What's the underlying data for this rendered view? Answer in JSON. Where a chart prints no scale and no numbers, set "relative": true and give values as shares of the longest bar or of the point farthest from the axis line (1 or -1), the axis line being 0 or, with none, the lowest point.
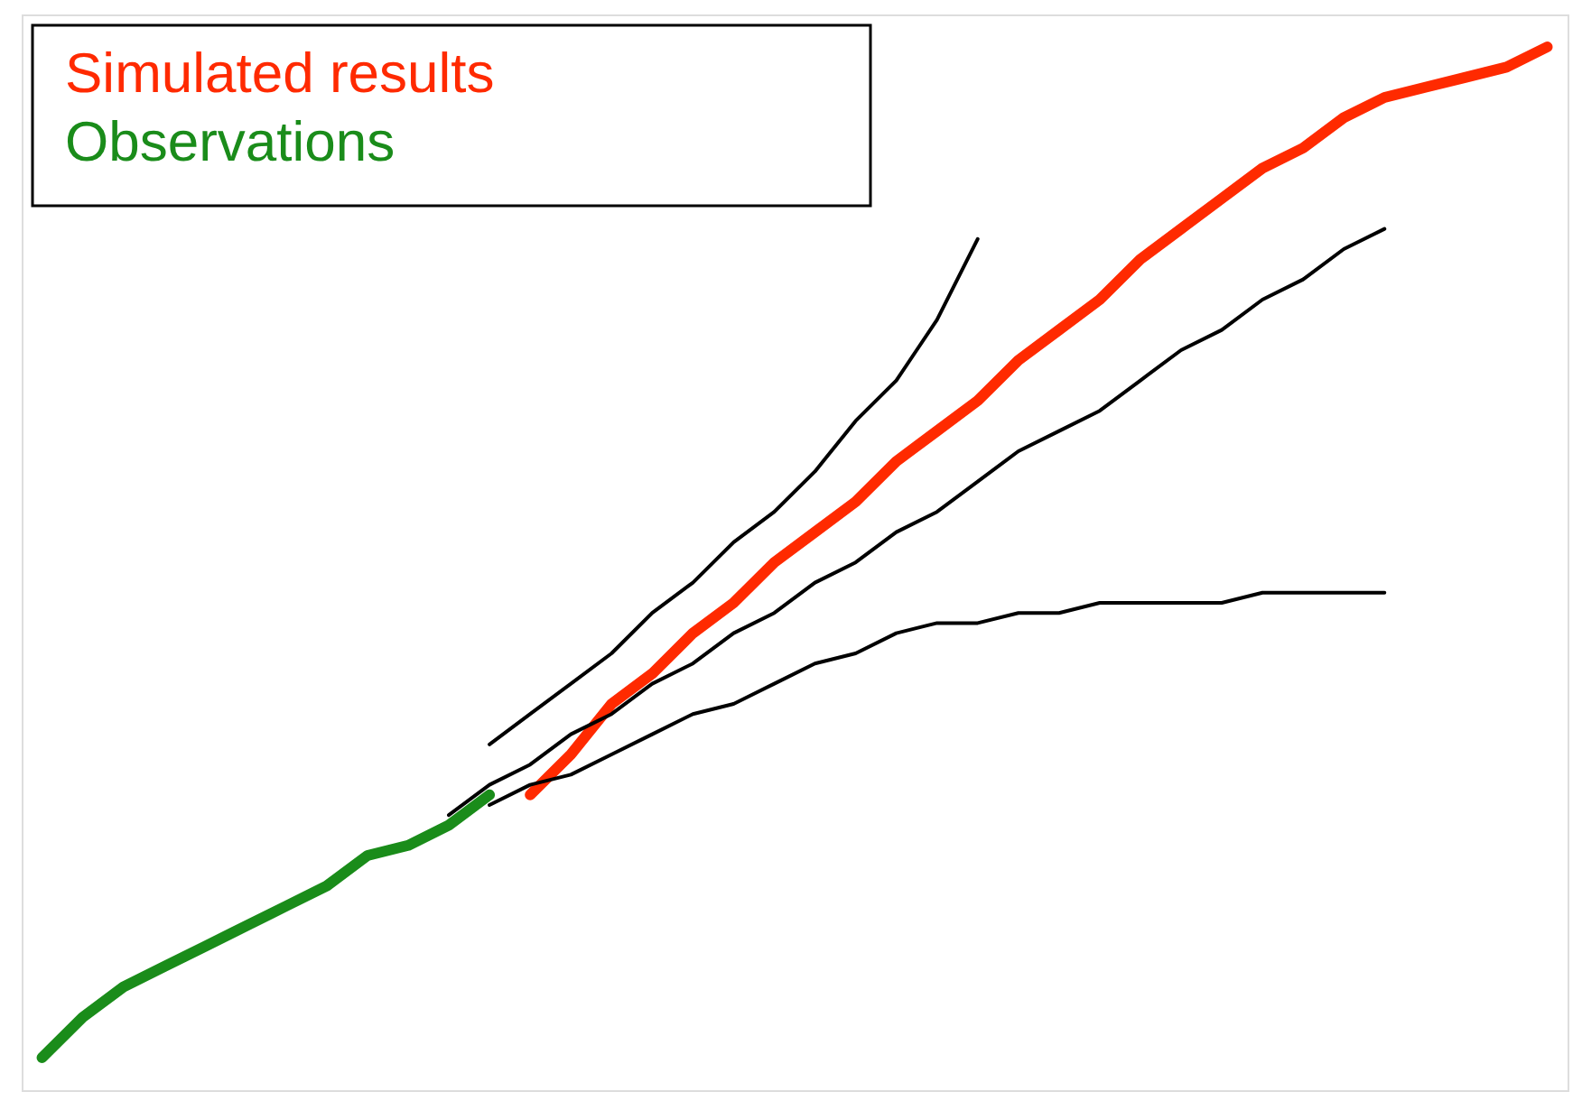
{
  "chart_data": {
    "type": "line",
    "relative": true,
    "categories": [
      null,
      null,
      null,
      null,
      null,
      null,
      null,
      null,
      null,
      null,
      null,
      null,
      null,
      null,
      null,
      null,
      null,
      null,
      null,
      null,
      null,
      null,
      null,
      null,
      null,
      null,
      null,
      null,
      null,
      null,
      null,
      null,
      null,
      null,
      null,
      null,
      null,
      null
    ],
    "series": [
      {
        "name": "Simulated results",
        "color": "#ff2a00",
        "values": [
          null,
          null,
          null,
          null,
          null,
          null,
          null,
          null,
          null,
          null,
          null,
          null,
          0.26,
          0.3,
          0.35,
          0.38,
          0.42,
          0.45,
          0.49,
          0.52,
          0.55,
          0.59,
          0.62,
          0.65,
          0.69,
          0.72,
          0.75,
          0.79,
          0.82,
          0.85,
          0.88,
          0.9,
          0.93,
          0.95,
          0.96,
          0.97,
          0.98,
          1
        ]
      },
      {
        "name": "Observations",
        "color": "#1a8c1a",
        "values": [
          0,
          0.04,
          0.07,
          0.09,
          0.11,
          0.13,
          0.15,
          0.17,
          0.2,
          0.21,
          0.23,
          0.26,
          null,
          null,
          null,
          null,
          null,
          null,
          null,
          null,
          null,
          null,
          null,
          null,
          null,
          null,
          null,
          null,
          null,
          null,
          null,
          null,
          null,
          null,
          null,
          null,
          null,
          null
        ]
      },
      {
        "color": "#000000",
        "values": [
          null,
          null,
          null,
          null,
          null,
          null,
          null,
          null,
          null,
          null,
          null,
          0.31,
          0.34,
          0.37,
          0.4,
          0.44,
          0.47,
          0.51,
          0.54,
          0.58,
          0.63,
          0.67,
          0.73,
          0.81,
          null,
          null,
          null,
          null,
          null,
          null,
          null,
          null,
          null,
          null,
          null,
          null,
          null,
          null
        ]
      },
      {
        "color": "#000000",
        "values": [
          null,
          null,
          null,
          null,
          null,
          null,
          null,
          null,
          null,
          null,
          0.24,
          0.27,
          0.29,
          0.32,
          0.34,
          0.37,
          0.39,
          0.42,
          0.44,
          0.47,
          0.49,
          0.52,
          0.54,
          0.57,
          0.6,
          0.62,
          0.64,
          0.67,
          0.7,
          0.72,
          0.75,
          0.77,
          0.8,
          0.82,
          null,
          null,
          null,
          null
        ]
      },
      {
        "color": "#000000",
        "values": [
          null,
          null,
          null,
          null,
          null,
          null,
          null,
          null,
          null,
          null,
          null,
          0.25,
          0.27,
          0.28,
          0.3,
          0.32,
          0.34,
          0.35,
          0.37,
          0.39,
          0.4,
          0.42,
          0.43,
          0.43,
          0.44,
          0.44,
          0.45,
          0.45,
          0.45,
          0.45,
          0.46,
          0.46,
          0.46,
          0.46,
          null,
          null,
          null,
          null
        ]
      }
    ]
  }
}
